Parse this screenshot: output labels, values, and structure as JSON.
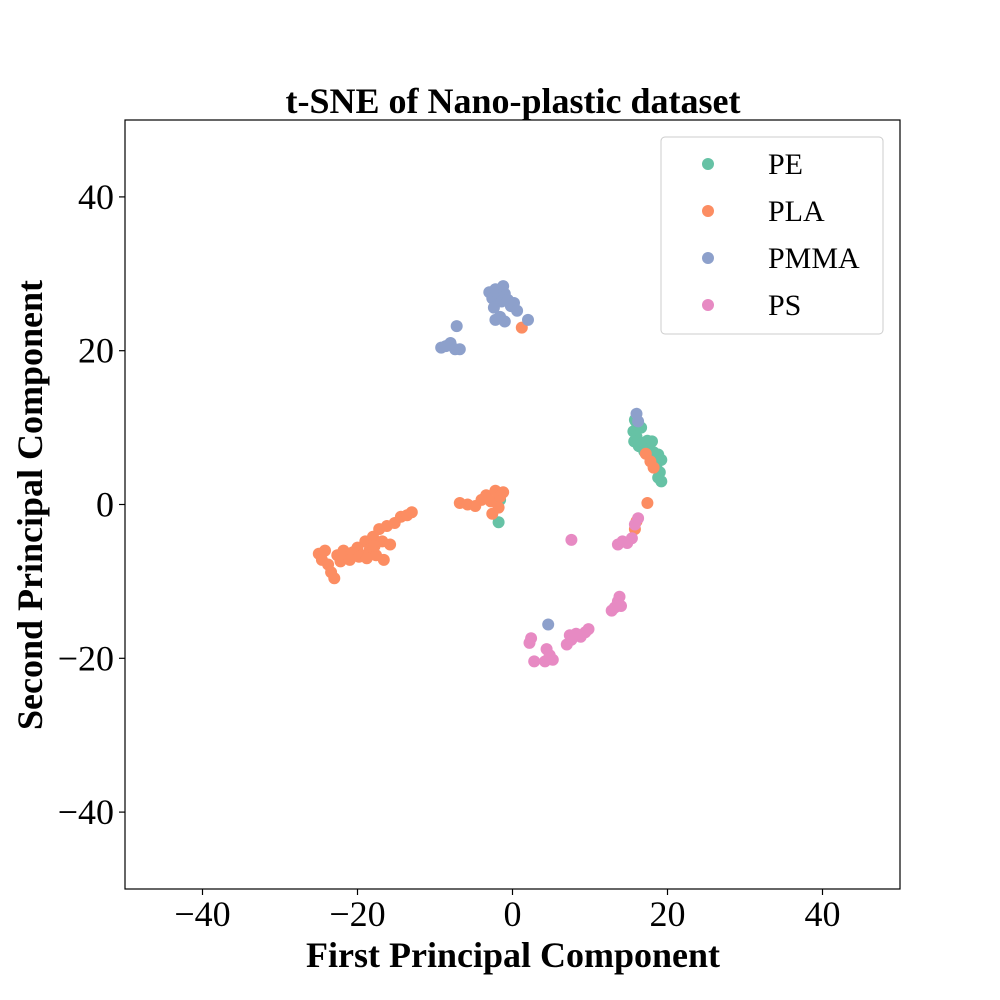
{
  "chart_data": {
    "type": "scatter",
    "title": "t-SNE of Nano-plastic dataset",
    "xlabel": "First Principal Component",
    "ylabel": "Second Principal Component",
    "xlim": [
      -50,
      50
    ],
    "ylim": [
      -50,
      50
    ],
    "xticks": [
      -40,
      -20,
      0,
      20,
      40
    ],
    "yticks": [
      -40,
      -20,
      0,
      20,
      40
    ],
    "xtick_labels": [
      "−40",
      "−20",
      "0",
      "20",
      "40"
    ],
    "ytick_labels": [
      "−40",
      "−20",
      "0",
      "20",
      "40"
    ],
    "grid": false,
    "legend_position": "top-right",
    "series": [
      {
        "name": "PE",
        "color": "#66c2a5",
        "points": [
          [
            15.8,
            11.0
          ],
          [
            16.2,
            10.5
          ],
          [
            15.6,
            9.5
          ],
          [
            16.0,
            8.8
          ],
          [
            15.7,
            8.2
          ],
          [
            16.3,
            7.6
          ],
          [
            16.8,
            8.0
          ],
          [
            17.4,
            8.3
          ],
          [
            18.0,
            8.2
          ],
          [
            17.6,
            7.2
          ],
          [
            18.2,
            6.8
          ],
          [
            18.8,
            6.5
          ],
          [
            19.2,
            5.8
          ],
          [
            18.6,
            5.2
          ],
          [
            19.0,
            4.2
          ],
          [
            18.8,
            3.5
          ],
          [
            19.2,
            3.0
          ],
          [
            16.6,
            10.0
          ],
          [
            15.9,
            10.8
          ],
          [
            17.0,
            6.9
          ],
          [
            -1.8,
            -2.3
          ],
          [
            -1.6,
            0.6
          ]
        ]
      },
      {
        "name": "PLA",
        "color": "#fc8d62",
        "points": [
          [
            -25.0,
            -6.4
          ],
          [
            -24.6,
            -7.2
          ],
          [
            -24.2,
            -6.0
          ],
          [
            -23.8,
            -7.8
          ],
          [
            -23.4,
            -8.8
          ],
          [
            -23.0,
            -9.6
          ],
          [
            -22.6,
            -6.6
          ],
          [
            -22.2,
            -7.4
          ],
          [
            -21.8,
            -6.0
          ],
          [
            -21.2,
            -6.8
          ],
          [
            -20.6,
            -6.2
          ],
          [
            -20.0,
            -5.6
          ],
          [
            -19.4,
            -6.6
          ],
          [
            -19.0,
            -4.8
          ],
          [
            -18.4,
            -5.8
          ],
          [
            -18.0,
            -4.2
          ],
          [
            -17.6,
            -6.6
          ],
          [
            -17.2,
            -3.2
          ],
          [
            -16.6,
            -7.2
          ],
          [
            -16.8,
            -4.8
          ],
          [
            -16.2,
            -2.8
          ],
          [
            -15.8,
            -5.2
          ],
          [
            -15.2,
            -2.4
          ],
          [
            -14.4,
            -1.6
          ],
          [
            -13.6,
            -1.4
          ],
          [
            -13.0,
            -1.0
          ],
          [
            -21.0,
            -7.2
          ],
          [
            -19.8,
            -6.8
          ],
          [
            -18.8,
            -7.0
          ],
          [
            -17.8,
            -5.4
          ],
          [
            -6.8,
            0.2
          ],
          [
            -5.8,
            0.0
          ],
          [
            -4.8,
            -0.2
          ],
          [
            -4.0,
            0.6
          ],
          [
            -3.4,
            1.2
          ],
          [
            -2.8,
            0.4
          ],
          [
            -2.2,
            1.8
          ],
          [
            -1.6,
            1.0
          ],
          [
            -1.2,
            1.6
          ],
          [
            -1.8,
            -0.4
          ],
          [
            -2.6,
            -1.2
          ],
          [
            1.2,
            23.0
          ],
          [
            17.2,
            6.6
          ],
          [
            17.8,
            5.6
          ],
          [
            18.2,
            4.8
          ],
          [
            17.4,
            0.2
          ],
          [
            16.0,
            -2.2
          ],
          [
            15.8,
            -3.2
          ]
        ]
      },
      {
        "name": "PMMA",
        "color": "#8da0cb",
        "points": [
          [
            -3.0,
            27.6
          ],
          [
            -2.6,
            26.8
          ],
          [
            -2.2,
            28.0
          ],
          [
            -1.8,
            27.2
          ],
          [
            -1.4,
            26.4
          ],
          [
            -1.0,
            27.4
          ],
          [
            -0.6,
            26.6
          ],
          [
            -0.2,
            25.8
          ],
          [
            0.2,
            26.2
          ],
          [
            0.6,
            25.2
          ],
          [
            -2.4,
            25.6
          ],
          [
            -1.6,
            24.4
          ],
          [
            -1.0,
            23.8
          ],
          [
            -2.2,
            24.0
          ],
          [
            -1.2,
            28.4
          ],
          [
            2.0,
            24.0
          ],
          [
            -9.2,
            20.4
          ],
          [
            -8.6,
            20.6
          ],
          [
            -8.0,
            21.0
          ],
          [
            -7.4,
            20.2
          ],
          [
            -6.8,
            20.2
          ],
          [
            -7.2,
            23.2
          ],
          [
            16.0,
            11.8
          ],
          [
            16.2,
            10.8
          ],
          [
            4.6,
            -15.6
          ]
        ]
      },
      {
        "name": "PS",
        "color": "#e78ac3",
        "points": [
          [
            7.6,
            -4.6
          ],
          [
            13.6,
            -5.2
          ],
          [
            14.2,
            -4.8
          ],
          [
            14.8,
            -5.0
          ],
          [
            15.4,
            -4.4
          ],
          [
            15.8,
            -2.6
          ],
          [
            16.2,
            -1.8
          ],
          [
            12.8,
            -13.8
          ],
          [
            13.2,
            -13.4
          ],
          [
            13.6,
            -12.6
          ],
          [
            13.8,
            -12.0
          ],
          [
            14.0,
            -13.2
          ],
          [
            9.4,
            -16.6
          ],
          [
            8.8,
            -17.2
          ],
          [
            8.2,
            -16.8
          ],
          [
            7.6,
            -17.6
          ],
          [
            7.0,
            -18.2
          ],
          [
            7.4,
            -17.0
          ],
          [
            9.8,
            -16.2
          ],
          [
            4.4,
            -18.8
          ],
          [
            4.8,
            -19.6
          ],
          [
            5.2,
            -20.2
          ],
          [
            4.2,
            -20.4
          ],
          [
            2.8,
            -20.4
          ],
          [
            2.4,
            -17.4
          ],
          [
            2.2,
            -18.0
          ]
        ]
      }
    ]
  }
}
